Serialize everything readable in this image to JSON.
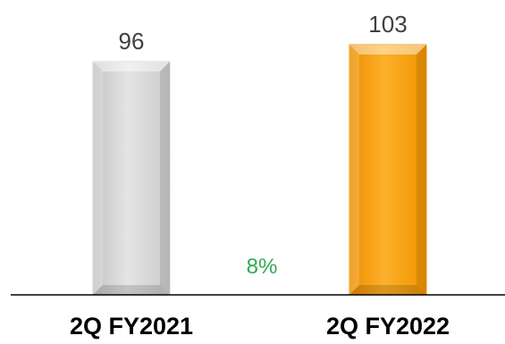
{
  "chart_data": {
    "type": "bar",
    "categories": [
      "2Q FY2021",
      "2Q FY2022"
    ],
    "values": [
      96,
      103
    ],
    "data_labels": [
      "96",
      "103"
    ],
    "annotations": [
      {
        "text": "8%",
        "color": "#2eab4f"
      }
    ],
    "colors": {
      "bar_2q_fy2021": "#d2d2d2",
      "bar_2q_fy2022": "#f29a0f",
      "value_label": "#404040",
      "axis": "#000000"
    },
    "ylim": [
      0,
      103
    ],
    "grid": false,
    "legend": "none"
  }
}
